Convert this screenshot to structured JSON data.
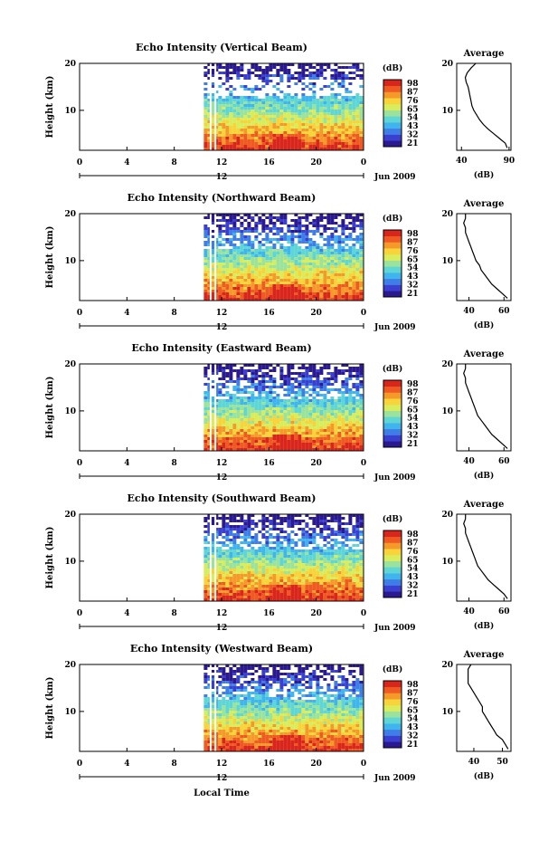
{
  "x_label": "Local Time",
  "date_label": "Jun 2009",
  "x_ticks": [
    "0",
    "4",
    "8",
    "12",
    "16",
    "20",
    "0"
  ],
  "day_tick": "12",
  "y_label": "Height (km)",
  "y_ticks": [
    "20",
    "10"
  ],
  "avg_title": "Average",
  "avg_xlabel": "(dB)",
  "colorbar_title": "(dB)",
  "colorbar_ticks": [
    "98",
    "87",
    "76",
    "65",
    "54",
    "43",
    "32",
    "21"
  ],
  "colors": {
    "scale": [
      "#2b1a8f",
      "#3a3fd0",
      "#3f7ee6",
      "#40b4ec",
      "#5fd6d6",
      "#9be39c",
      "#d9ec5c",
      "#f8d33a",
      "#f59a2a",
      "#ef5a23",
      "#d9261c"
    ]
  },
  "chart_data": [
    {
      "type": "heatmap",
      "title": "Echo Intensity (Vertical Beam)",
      "ylabel": "Height (km)",
      "xlim": [
        0,
        24
      ],
      "ylim": [
        1.5,
        20
      ],
      "data_start_hour": 10.5,
      "clim": [
        21,
        98
      ],
      "avg_profile": {
        "xticks": [
          "40",
          "90"
        ],
        "xlim": [
          35,
          92
        ],
        "heights": [
          2,
          3,
          4,
          5,
          6,
          7,
          8,
          9,
          10,
          11,
          12,
          13,
          14,
          15,
          16,
          17,
          18,
          19,
          20
        ],
        "values": [
          88,
          86,
          80,
          74,
          68,
          63,
          59,
          56,
          53,
          51,
          50,
          49,
          48,
          47,
          45,
          44,
          46,
          50,
          55
        ]
      }
    },
    {
      "type": "heatmap",
      "title": "Echo Intensity (Northward Beam)",
      "ylabel": "Height (km)",
      "xlim": [
        0,
        24
      ],
      "ylim": [
        1.5,
        20
      ],
      "data_start_hour": 10.5,
      "clim": [
        21,
        98
      ],
      "avg_profile": {
        "xticks": [
          "40",
          "60"
        ],
        "xlim": [
          33,
          64
        ],
        "heights": [
          2,
          3,
          4,
          5,
          6,
          7,
          8,
          9,
          10,
          11,
          12,
          13,
          14,
          15,
          16,
          17,
          18,
          19,
          20
        ],
        "values": [
          62,
          59,
          56,
          53,
          51,
          49,
          47,
          46,
          44,
          43,
          42,
          41,
          40,
          39,
          38,
          38,
          37,
          38,
          38
        ]
      }
    },
    {
      "type": "heatmap",
      "title": "Echo Intensity (Eastward Beam)",
      "ylabel": "Height (km)",
      "xlim": [
        0,
        24
      ],
      "ylim": [
        1.5,
        20
      ],
      "data_start_hour": 10.5,
      "clim": [
        21,
        98
      ],
      "avg_profile": {
        "xticks": [
          "40",
          "60"
        ],
        "xlim": [
          33,
          64
        ],
        "heights": [
          2,
          3,
          4,
          5,
          6,
          7,
          8,
          9,
          10,
          11,
          12,
          13,
          14,
          15,
          16,
          17,
          18,
          19,
          20
        ],
        "values": [
          62,
          59,
          56,
          53,
          51,
          49,
          47,
          45,
          44,
          43,
          42,
          41,
          40,
          39,
          38,
          38,
          37,
          38,
          38
        ]
      }
    },
    {
      "type": "heatmap",
      "title": "Echo Intensity (Southward Beam)",
      "ylabel": "Height (km)",
      "xlim": [
        0,
        24
      ],
      "ylim": [
        1.5,
        20
      ],
      "data_start_hour": 10.5,
      "clim": [
        21,
        98
      ],
      "avg_profile": {
        "xticks": [
          "40",
          "60"
        ],
        "xlim": [
          33,
          64
        ],
        "heights": [
          2,
          3,
          4,
          5,
          6,
          7,
          8,
          9,
          10,
          11,
          12,
          13,
          14,
          15,
          16,
          17,
          18,
          19,
          20
        ],
        "values": [
          62,
          60,
          57,
          54,
          51,
          49,
          47,
          45,
          44,
          43,
          42,
          41,
          40,
          39,
          38,
          38,
          37,
          38,
          38
        ]
      }
    },
    {
      "type": "heatmap",
      "title": "Echo Intensity (Westward Beam)",
      "ylabel": "Height (km)",
      "xlim": [
        0,
        24
      ],
      "ylim": [
        1.5,
        20
      ],
      "data_start_hour": 10.5,
      "clim": [
        21,
        98
      ],
      "avg_profile": {
        "xticks": [
          "40",
          "50"
        ],
        "xlim": [
          34,
          53
        ],
        "heights": [
          2,
          3,
          4,
          5,
          6,
          7,
          8,
          9,
          10,
          11,
          12,
          13,
          14,
          15,
          16,
          17,
          18,
          19,
          20
        ],
        "values": [
          52,
          51,
          50,
          48,
          47,
          46,
          45,
          44,
          43,
          43,
          42,
          41,
          40,
          39,
          38,
          38,
          38,
          38,
          39
        ]
      }
    }
  ]
}
